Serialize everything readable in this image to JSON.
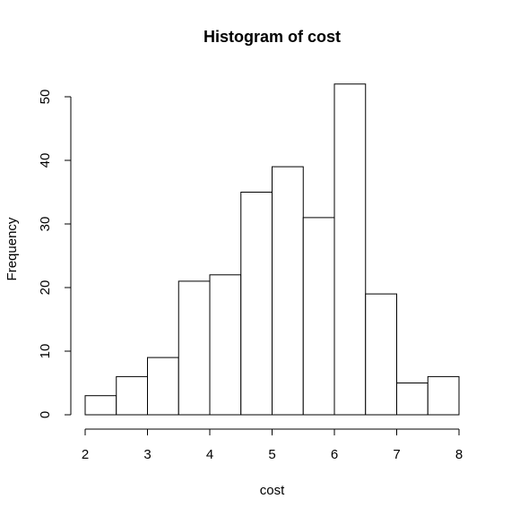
{
  "chart_data": {
    "type": "bar",
    "title": "Histogram of cost",
    "xlabel": "cost",
    "ylabel": "Frequency",
    "bins": [
      {
        "start": 2.0,
        "end": 2.5,
        "count": 3
      },
      {
        "start": 2.5,
        "end": 3.0,
        "count": 6
      },
      {
        "start": 3.0,
        "end": 3.5,
        "count": 9
      },
      {
        "start": 3.5,
        "end": 4.0,
        "count": 21
      },
      {
        "start": 4.0,
        "end": 4.5,
        "count": 22
      },
      {
        "start": 4.5,
        "end": 5.0,
        "count": 35
      },
      {
        "start": 5.0,
        "end": 5.5,
        "count": 39
      },
      {
        "start": 5.5,
        "end": 6.0,
        "count": 31
      },
      {
        "start": 6.0,
        "end": 6.5,
        "count": 52
      },
      {
        "start": 6.5,
        "end": 7.0,
        "count": 19
      },
      {
        "start": 7.0,
        "end": 7.5,
        "count": 5
      },
      {
        "start": 7.5,
        "end": 8.0,
        "count": 6
      }
    ],
    "xticks": [
      2,
      3,
      4,
      5,
      6,
      7,
      8
    ],
    "yticks": [
      0,
      10,
      20,
      30,
      40,
      50
    ],
    "xlim": [
      2,
      8
    ],
    "ylim": [
      0,
      52
    ],
    "grid": false,
    "legend": "none",
    "colors": {
      "bar_fill": "#ffffff",
      "bar_stroke": "#000000"
    }
  }
}
